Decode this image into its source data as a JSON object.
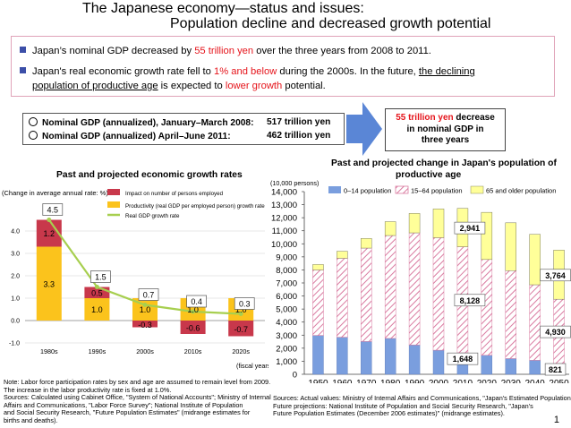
{
  "header": {
    "title_line1": "The Japanese economy—status and issues:",
    "title_line2": "Population decline and decreased growth potential"
  },
  "bullets": {
    "b1": {
      "pre": "Japan’s nominal GDP decreased by ",
      "hl": "55 trillion yen",
      "post": " over the three years from 2008 to 2011."
    },
    "b2": {
      "pre": "Japan's real economic growth rate fell to ",
      "hl": "1% and below",
      "post": " during the 2000s. In the future, ",
      "ul1": "the declining",
      "ul2": "population of productive age",
      "mid": " is expected to ",
      "hl2": "lower growth",
      "end": " potential."
    }
  },
  "gdp_box": {
    "row1_label": "Nominal GDP (annualized), January–March 2008:",
    "row1_value": "517 trillion yen",
    "row2_label": "Nominal GDP (annualized) April–June 2011:",
    "row2_value": "462 trillion yen"
  },
  "callout": {
    "hl": "55 trillion yen",
    "line1_rest": " decrease",
    "line2": "in nominal GDP in",
    "line3": "three years"
  },
  "colors": {
    "red_bar": "#c8384b",
    "yellow_bar": "#fbc31c",
    "growth_line": "#a7cf4f",
    "pop_blue": "#7a9ede",
    "pop_hatch": "#d97aa0",
    "pop_yellow": "#ffff99",
    "bullet": "#3c4fa8",
    "arrow": "#5a86d6"
  },
  "chart_data": [
    {
      "type": "bar",
      "stacked": true,
      "title": "Past and projected economic growth rates",
      "ylabel": "(Change in average annual rate: %)",
      "xlabel_note": "(fiscal years)",
      "ylim": [
        -1.0,
        4.0
      ],
      "yticks": [
        "-1.0",
        "0.0",
        "1.0",
        "2.0",
        "3.0",
        "4.0"
      ],
      "categories": [
        "1980s",
        "1990s",
        "2000s",
        "2010s",
        "2020s"
      ],
      "series": [
        {
          "name": "Impact on number of persons employed",
          "values": [
            1.2,
            0.5,
            -0.3,
            -0.6,
            -0.7
          ],
          "labels": [
            "1.2",
            "0.5",
            "-0.3",
            "-0.6",
            "-0.7"
          ]
        },
        {
          "name": "Productivity (real GDP per employed person) growth rate",
          "values": [
            3.3,
            1.0,
            1.0,
            1.0,
            1.0
          ],
          "labels": [
            "3.3",
            "1.0",
            "1.0",
            "1.0",
            "1.0"
          ]
        },
        {
          "name": "Real GDP growth rate",
          "type": "line",
          "values": [
            4.5,
            1.5,
            0.7,
            0.4,
            0.3
          ],
          "labels": [
            "4.5",
            "1.5",
            "0.7",
            "0.4",
            "0.3"
          ]
        }
      ]
    },
    {
      "type": "bar",
      "stacked": true,
      "title_line1": "Past and projected change in Japan's population of",
      "title_line2": "productive age",
      "ylabel": "(10,000 persons)",
      "ylim": [
        0,
        14000
      ],
      "yticks": [
        "0",
        "1,000",
        "2,000",
        "3,000",
        "4,000",
        "5,000",
        "6,000",
        "7,000",
        "8,000",
        "9,000",
        "10,000",
        "11,000",
        "12,000",
        "13,000",
        "14,000"
      ],
      "categories": [
        "1950",
        "1960",
        "1970",
        "1980",
        "1990",
        "2000",
        "2010",
        "2020",
        "2030",
        "2040",
        "2050"
      ],
      "series": [
        {
          "name": "0–14 population",
          "values": [
            2979,
            2843,
            2515,
            2751,
            2249,
            1847,
            1648,
            1457,
            1204,
            1073,
            821
          ]
        },
        {
          "name": "15–64 population",
          "values": [
            5017,
            6047,
            7157,
            7883,
            8590,
            8622,
            8128,
            7341,
            6740,
            5787,
            4930
          ]
        },
        {
          "name": "65 and older population",
          "values": [
            416,
            540,
            739,
            1065,
            1489,
            2204,
            2941,
            3612,
            3667,
            3868,
            3764
          ]
        }
      ],
      "annotations": [
        "2,941",
        "8,128",
        "1,648",
        "3,764",
        "4,930",
        "821"
      ]
    }
  ],
  "footnotes": {
    "left": [
      "Note:   Labor force participation rates by sex and age are assumed to remain level from 2009.",
      "            The increase in the labor productivity rate is fixed at 1.0%.",
      "Sources: Calculated using Cabinet Office, \"System of National Accounts\"; Ministry of Internal",
      "            Affairs and Communications, \"Labor Force Survey\"; National Institute of Population",
      "            and Social Security Research, \"Future Population Estimates\" (midrange estimates for",
      "            births and deaths)."
    ],
    "right": [
      "Sources: Actual values: Ministry of Internal Affairs and Communications, \"Japan's Estimated Population.\"",
      "             Future projections: National Institute of Population and Social Security Research, \"Japan's",
      "             Future Population Estimates (December 2006 estimates)\" (midrange estimates)."
    ]
  },
  "page_number": "1"
}
